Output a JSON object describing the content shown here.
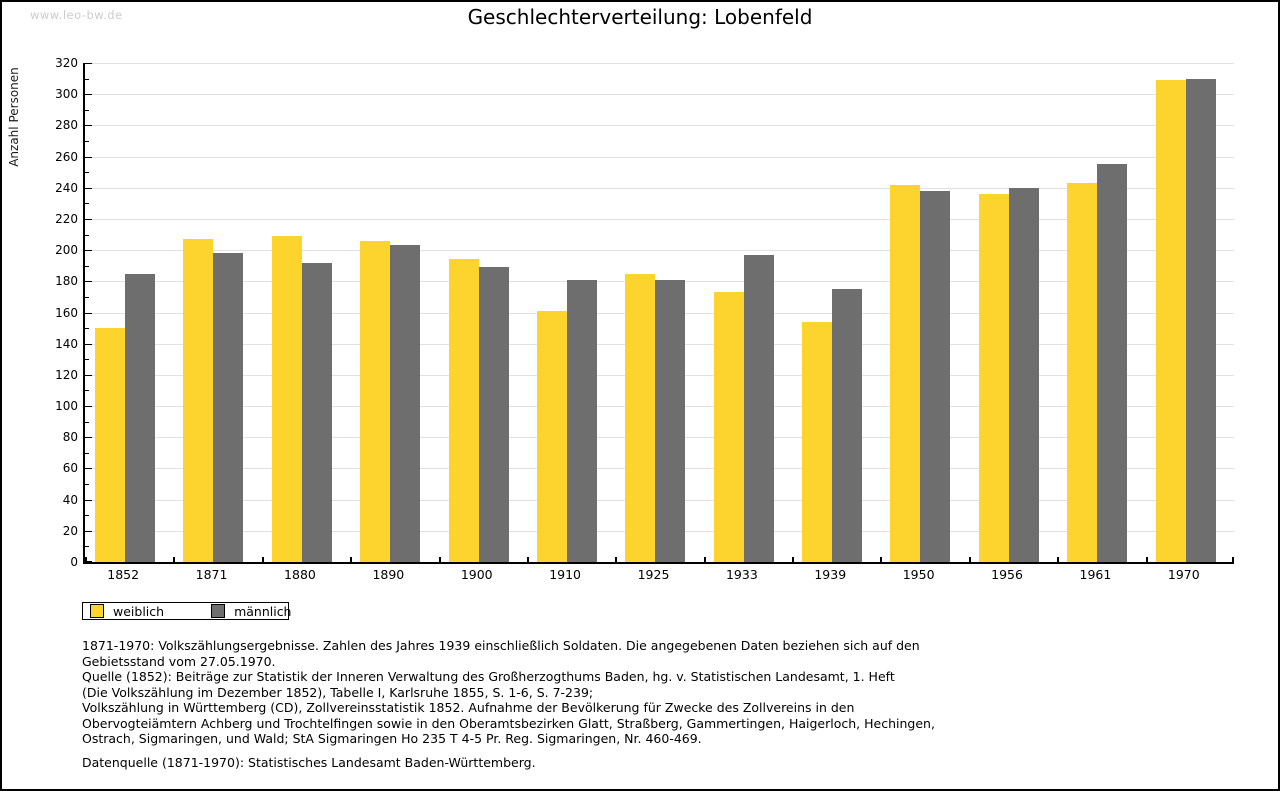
{
  "watermark": "www.leo-bw.de",
  "title": "Geschlechterverteilung: Lobenfeld",
  "chart_data": {
    "type": "bar",
    "title": "Geschlechterverteilung: Lobenfeld",
    "xlabel": "",
    "ylabel": "Anzahl Personen",
    "ylim": [
      0,
      320
    ],
    "ytick_step": 20,
    "yminor_step": 10,
    "grid": true,
    "legend_position": "bottom-left",
    "categories": [
      "1852",
      "1871",
      "1880",
      "1890",
      "1900",
      "1910",
      "1925",
      "1933",
      "1939",
      "1950",
      "1956",
      "1961",
      "1970"
    ],
    "series": [
      {
        "name": "weiblich",
        "color": "#FCD42D",
        "values": [
          150,
          207,
          209,
          206,
          194,
          161,
          185,
          173,
          154,
          242,
          236,
          243,
          309
        ]
      },
      {
        "name": "männlich",
        "color": "#6E6E6E",
        "values": [
          185,
          198,
          192,
          203,
          189,
          181,
          181,
          197,
          175,
          238,
          240,
          255,
          310
        ]
      }
    ]
  },
  "colors": {
    "weiblich": "#FCD42D",
    "maennlich": "#6E6E6E",
    "gridline": "#e1e1e1",
    "axis": "#000000",
    "watermark": "#cccccc"
  },
  "footer": {
    "lines": [
      "1871-1970: Volkszählungsergebnisse. Zahlen des Jahres 1939 einschließlich Soldaten. Die angegebenen Daten beziehen sich auf den",
      "Gebietsstand vom 27.05.1970.",
      "Quelle (1852): Beiträge zur Statistik der Inneren Verwaltung des Großherzogthums Baden, hg. v. Statistischen Landesamt, 1. Heft",
      "(Die Volkszählung im Dezember 1852), Tabelle I, Karlsruhe 1855, S. 1-6, S. 7-239;",
      "Volkszählung in Württemberg (CD), Zollvereinsstatistik 1852. Aufnahme der Bevölkerung für Zwecke des Zollvereins in den",
      "Obervogteiämtern Achberg und Trochtelfingen sowie in den Oberamtsbezirken Glatt, Straßberg, Gammertingen, Haigerloch, Hechingen,",
      "Ostrach, Sigmaringen, und Wald; StA Sigmaringen Ho 235 T 4-5 Pr. Reg. Sigmaringen, Nr. 460-469."
    ],
    "datenquelle": "Datenquelle (1871-1970): Statistisches Landesamt Baden-Württemberg."
  }
}
